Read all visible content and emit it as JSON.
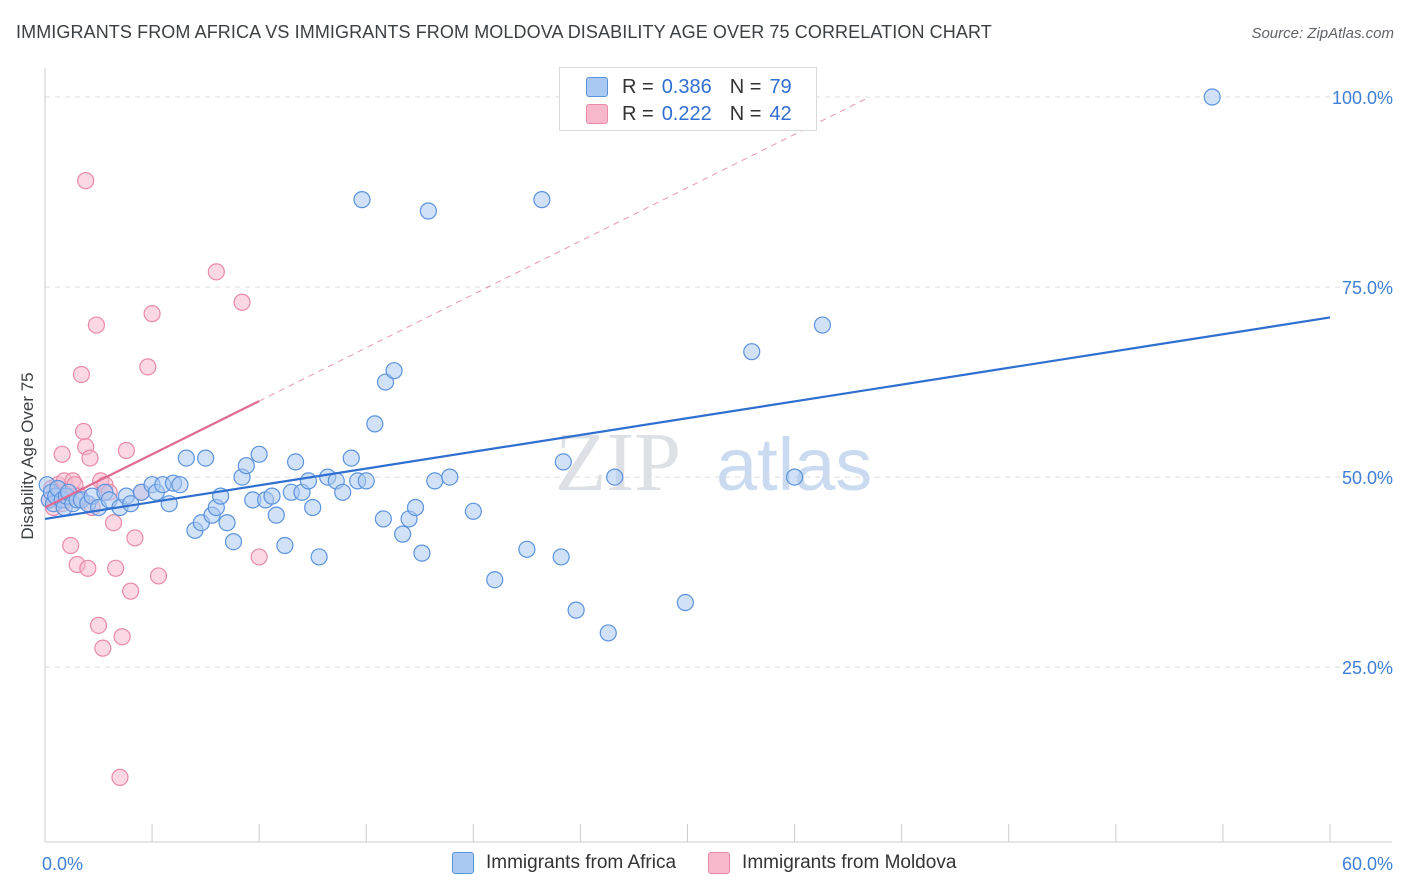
{
  "header": {
    "title": "IMMIGRANTS FROM AFRICA VS IMMIGRANTS FROM MOLDOVA DISABILITY AGE OVER 75 CORRELATION CHART",
    "source": "Source: ZipAtlas.com"
  },
  "legend": {
    "series1": {
      "r_label": "R = ",
      "r_value": "0.386",
      "n_label": "N = ",
      "n_value": "79"
    },
    "series2": {
      "r_label": "R = ",
      "r_value": "0.222",
      "n_label": "N = ",
      "n_value": "42"
    }
  },
  "bottom_legend": {
    "africa": "Immigrants from Africa",
    "moldova": "Immigrants from Moldova"
  },
  "watermark": {
    "zip": "ZIP",
    "atlas": "atlas"
  },
  "colors": {
    "africa_fill": "#a9c8f2",
    "africa_stroke": "#5b93dd",
    "africa_line": "#2f6fd0",
    "moldova_fill": "#f7b8cc",
    "moldova_stroke": "#e88aa8",
    "moldova_line": "#e06a92",
    "tick_label": "#3f7fd6"
  },
  "chart_data": {
    "type": "scatter",
    "title": "IMMIGRANTS FROM AFRICA VS IMMIGRANTS FROM MOLDOVA DISABILITY AGE OVER 75 CORRELATION CHART",
    "xlabel": "",
    "ylabel": "Disability Age Over 75",
    "xlim": [
      0,
      60
    ],
    "ylim": [
      2,
      102.5
    ],
    "x_tick_labels": [
      "0.0%",
      "60.0%"
    ],
    "y_ticks": [
      25,
      50,
      75,
      100
    ],
    "y_tick_labels": [
      "25.0%",
      "50.0%",
      "75.0%",
      "100.0%"
    ],
    "grid": true,
    "series": [
      {
        "name": "Immigrants from Africa",
        "r": 0.386,
        "n": 79,
        "trend": {
          "x": [
            0,
            60
          ],
          "y": [
            44.5,
            71
          ]
        },
        "points": [
          [
            0.1,
            49
          ],
          [
            0.2,
            47
          ],
          [
            0.3,
            48
          ],
          [
            0.4,
            46.5
          ],
          [
            0.5,
            47.5
          ],
          [
            0.6,
            48.5
          ],
          [
            0.8,
            47
          ],
          [
            0.9,
            46
          ],
          [
            1.0,
            47.5
          ],
          [
            1.1,
            48
          ],
          [
            1.3,
            46.5
          ],
          [
            1.5,
            47
          ],
          [
            1.7,
            47
          ],
          [
            2.0,
            46.5
          ],
          [
            2.2,
            47.5
          ],
          [
            2.5,
            46
          ],
          [
            2.8,
            48
          ],
          [
            3.0,
            47
          ],
          [
            3.5,
            46
          ],
          [
            3.8,
            47.5
          ],
          [
            4.0,
            46.5
          ],
          [
            4.5,
            48
          ],
          [
            5.0,
            49
          ],
          [
            5.2,
            48
          ],
          [
            5.5,
            49
          ],
          [
            5.8,
            46.5
          ],
          [
            6.0,
            49.2
          ],
          [
            6.3,
            49
          ],
          [
            6.6,
            52.5
          ],
          [
            7.0,
            43
          ],
          [
            7.3,
            44
          ],
          [
            7.5,
            52.5
          ],
          [
            7.8,
            45
          ],
          [
            8.0,
            46
          ],
          [
            8.2,
            47.5
          ],
          [
            8.5,
            44
          ],
          [
            8.8,
            41.5
          ],
          [
            9.2,
            50
          ],
          [
            9.4,
            51.5
          ],
          [
            9.7,
            47
          ],
          [
            10.0,
            53
          ],
          [
            10.3,
            47
          ],
          [
            10.6,
            47.5
          ],
          [
            10.8,
            45
          ],
          [
            11.2,
            41
          ],
          [
            11.5,
            48
          ],
          [
            11.7,
            52
          ],
          [
            12.0,
            48
          ],
          [
            12.3,
            49.5
          ],
          [
            12.5,
            46
          ],
          [
            12.8,
            39.5
          ],
          [
            13.2,
            50
          ],
          [
            13.6,
            49.5
          ],
          [
            13.9,
            48
          ],
          [
            14.3,
            52.5
          ],
          [
            14.6,
            49.5
          ],
          [
            15.0,
            49.5
          ],
          [
            14.8,
            86.5
          ],
          [
            15.4,
            57
          ],
          [
            15.8,
            44.5
          ],
          [
            15.9,
            62.5
          ],
          [
            16.3,
            64
          ],
          [
            16.7,
            42.5
          ],
          [
            17.0,
            44.5
          ],
          [
            17.3,
            46
          ],
          [
            17.6,
            40
          ],
          [
            17.9,
            85
          ],
          [
            18.2,
            49.5
          ],
          [
            18.9,
            50
          ],
          [
            20.0,
            45.5
          ],
          [
            21.0,
            36.5
          ],
          [
            22.5,
            40.5
          ],
          [
            23.2,
            86.5
          ],
          [
            24.1,
            39.5
          ],
          [
            24.2,
            52
          ],
          [
            24.8,
            32.5
          ],
          [
            26.3,
            29.5
          ],
          [
            26.6,
            50
          ],
          [
            29.9,
            33.5
          ],
          [
            33.0,
            66.5
          ],
          [
            35.0,
            50
          ],
          [
            36.3,
            70
          ],
          [
            54.5,
            100
          ]
        ]
      },
      {
        "name": "Immigrants from Moldova",
        "r": 0.222,
        "n": 42,
        "trend": {
          "x": [
            0,
            10
          ],
          "y": [
            46,
            60
          ]
        },
        "trend_dashed": {
          "x": [
            10,
            38.5
          ],
          "y": [
            60,
            100
          ]
        },
        "points": [
          [
            0.2,
            47
          ],
          [
            0.3,
            48.5
          ],
          [
            0.4,
            46
          ],
          [
            0.5,
            47.5
          ],
          [
            0.6,
            49
          ],
          [
            0.7,
            48
          ],
          [
            0.8,
            46.5
          ],
          [
            0.9,
            49.5
          ],
          [
            1.0,
            47
          ],
          [
            1.1,
            48
          ],
          [
            1.2,
            41
          ],
          [
            1.3,
            49.5
          ],
          [
            0.8,
            53
          ],
          [
            1.4,
            49
          ],
          [
            1.5,
            38.5
          ],
          [
            1.6,
            47.5
          ],
          [
            1.7,
            63.5
          ],
          [
            1.8,
            56
          ],
          [
            1.9,
            54
          ],
          [
            2.0,
            38
          ],
          [
            2.1,
            52.5
          ],
          [
            1.9,
            89
          ],
          [
            2.2,
            46
          ],
          [
            2.4,
            70
          ],
          [
            2.5,
            30.5
          ],
          [
            2.6,
            49.5
          ],
          [
            2.7,
            27.5
          ],
          [
            2.8,
            49
          ],
          [
            3.0,
            48
          ],
          [
            3.2,
            44
          ],
          [
            3.3,
            38
          ],
          [
            3.5,
            10.5
          ],
          [
            3.6,
            29
          ],
          [
            3.8,
            53.5
          ],
          [
            4.0,
            35
          ],
          [
            4.2,
            42
          ],
          [
            4.5,
            48
          ],
          [
            4.8,
            64.5
          ],
          [
            5.0,
            71.5
          ],
          [
            5.3,
            37
          ],
          [
            8.0,
            77
          ],
          [
            9.2,
            73
          ],
          [
            10.0,
            39.5
          ]
        ]
      }
    ]
  }
}
